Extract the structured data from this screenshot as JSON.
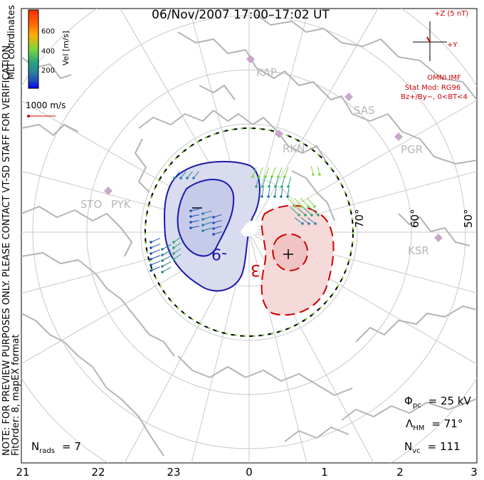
{
  "title": "06/Nov/2007  17:00–17:02  UT",
  "colorbar": {
    "label": "Vel [m/s]",
    "ticks": [
      "600",
      "400",
      "200"
    ],
    "colors": [
      "#ff2a00",
      "#ff8c00",
      "#ffc800",
      "#7cd63a",
      "#2aa57a",
      "#2a7f9e",
      "#1f4fb8",
      "#0000ff"
    ]
  },
  "coords_label": "MLT coordinates",
  "reference_vector": {
    "label": "1000 m/s",
    "color": "#cc0000"
  },
  "note": {
    "line1": "NOTE: FOR PREVIEW PURPOSES ONLY. PLEASE CONTACT VT-SD STAFF FOR VERIFICATION.",
    "line2": "FitOrder: 8,  mapEX format"
  },
  "imf": {
    "z_label": "+Z (5 nT)",
    "y_label": "+Y",
    "source": "OMNI IMF",
    "stat_mod": "Stat Mod: RG96",
    "condition": "Bz+/By−, 0<BT<4",
    "color": "#cc0000"
  },
  "stations": [
    "KAP",
    "SAS",
    "RKN",
    "PGR",
    "STO",
    "PYK",
    "KSR"
  ],
  "lat_labels": [
    "70°",
    "60°",
    "50°"
  ],
  "mlt_labels": [
    "21",
    "22",
    "23",
    "0",
    "1",
    "2",
    "3"
  ],
  "contours": {
    "negative_label": "-9",
    "positive_label": "3",
    "negative_color": "#1a1aa8",
    "positive_color": "#cc0000"
  },
  "stats": {
    "phi_symbol": "Φ",
    "phi_sub": "pc",
    "phi_value": "= 25 kV",
    "lambda_symbol": "Λ",
    "lambda_sub": "HM",
    "lambda_value": "= 71°",
    "nvc_symbol": "N",
    "nvc_sub": "vc",
    "nvc_value": "= 111",
    "nrads_symbol": "N",
    "nrads_sub": "rads",
    "nrads_value": "= 7"
  }
}
